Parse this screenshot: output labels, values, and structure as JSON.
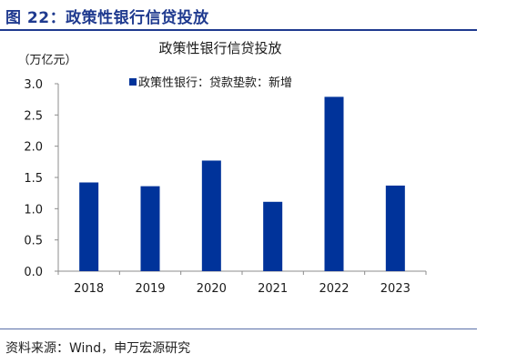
{
  "figure": {
    "label": "图 22：政策性银行信贷投放",
    "source": "资料来源：Wind，申万宏源研究"
  },
  "colors": {
    "accent": "#1f3a8f",
    "bar": "#00339a"
  },
  "chart_data": {
    "type": "bar",
    "title": "政策性银行信贷投放",
    "unit_label": "（万亿元）",
    "categories": [
      "2018",
      "2019",
      "2020",
      "2021",
      "2022",
      "2023"
    ],
    "series": [
      {
        "name": "政策性银行：贷款垫款：新增",
        "values": [
          1.42,
          1.36,
          1.77,
          1.11,
          2.79,
          1.37
        ]
      }
    ],
    "yticks": [
      "0.0",
      "0.5",
      "1.0",
      "1.5",
      "2.0",
      "2.5",
      "3.0"
    ],
    "ylim": [
      0,
      3.0
    ],
    "grid": false,
    "legend_position": "top-center"
  }
}
